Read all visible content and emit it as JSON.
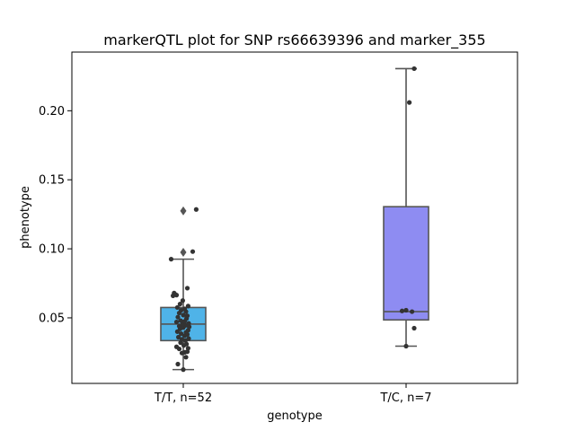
{
  "chart_data": {
    "type": "box",
    "title": "markerQTL plot for SNP rs66639396 and marker_355",
    "xlabel": "genotype",
    "ylabel": "phenotype",
    "ylim": [
      0.0025,
      0.2425
    ],
    "yticks": [
      0.05,
      0.1,
      0.15,
      0.2
    ],
    "ytick_labels": [
      "0.05",
      "0.10",
      "0.15",
      "0.20"
    ],
    "categories": [
      "T/T, n=52",
      "T/C, n=7"
    ],
    "grid": false,
    "legend": "none",
    "colors": {
      "TT": "#4FB3E8",
      "TC": "#8E8CF2",
      "edge": "#555555",
      "points": "#333333"
    },
    "boxes": [
      {
        "category": "T/T, n=52",
        "q1": 0.0335,
        "median": 0.0455,
        "q3": 0.0575,
        "whisker_low": 0.0125,
        "whisker_high": 0.0925,
        "outliers": [
          0.0975,
          0.1275
        ]
      },
      {
        "category": "T/C, n=7",
        "q1": 0.0485,
        "median": 0.0545,
        "q3": 0.1305,
        "whisker_low": 0.0295,
        "whisker_high": 0.2305,
        "outliers": []
      }
    ],
    "points": [
      [
        {
          "x": 0.0,
          "y": 0.0125
        },
        {
          "x": -0.2,
          "y": 0.0165
        },
        {
          "x": 0.1,
          "y": 0.0215
        },
        {
          "x": -0.05,
          "y": 0.0245
        },
        {
          "x": 0.05,
          "y": 0.025
        },
        {
          "x": 0.15,
          "y": 0.0255
        },
        {
          "x": -0.15,
          "y": 0.0275
        },
        {
          "x": 0.18,
          "y": 0.028
        },
        {
          "x": -0.25,
          "y": 0.029
        },
        {
          "x": 0.02,
          "y": 0.03
        },
        {
          "x": 0.12,
          "y": 0.031
        },
        {
          "x": -0.1,
          "y": 0.032
        },
        {
          "x": 0.08,
          "y": 0.0335
        },
        {
          "x": -0.05,
          "y": 0.0345
        },
        {
          "x": 0.2,
          "y": 0.035
        },
        {
          "x": -0.18,
          "y": 0.036
        },
        {
          "x": 0.05,
          "y": 0.037
        },
        {
          "x": 0.15,
          "y": 0.038
        },
        {
          "x": -0.08,
          "y": 0.0385
        },
        {
          "x": 0.1,
          "y": 0.0395
        },
        {
          "x": -0.22,
          "y": 0.04
        },
        {
          "x": 0.18,
          "y": 0.041
        },
        {
          "x": -0.12,
          "y": 0.042
        },
        {
          "x": 0.0,
          "y": 0.043
        },
        {
          "x": 0.22,
          "y": 0.0435
        },
        {
          "x": -0.15,
          "y": 0.044
        },
        {
          "x": 0.08,
          "y": 0.0445
        },
        {
          "x": -0.02,
          "y": 0.0455
        },
        {
          "x": 0.2,
          "y": 0.046
        },
        {
          "x": -0.25,
          "y": 0.047
        },
        {
          "x": 0.05,
          "y": 0.0475
        },
        {
          "x": -0.1,
          "y": 0.048
        },
        {
          "x": 0.12,
          "y": 0.0495
        },
        {
          "x": -0.2,
          "y": 0.0505
        },
        {
          "x": 0.15,
          "y": 0.0515
        },
        {
          "x": 0.0,
          "y": 0.052
        },
        {
          "x": -0.15,
          "y": 0.0535
        },
        {
          "x": 0.1,
          "y": 0.0545
        },
        {
          "x": -0.08,
          "y": 0.0555
        },
        {
          "x": 0.05,
          "y": 0.0565
        },
        {
          "x": -0.22,
          "y": 0.0575
        },
        {
          "x": 0.18,
          "y": 0.0585
        },
        {
          "x": -0.12,
          "y": 0.06
        },
        {
          "x": -0.02,
          "y": 0.0625
        },
        {
          "x": -0.38,
          "y": 0.066
        },
        {
          "x": -0.25,
          "y": 0.0665
        },
        {
          "x": -0.3,
          "y": 0.067
        },
        {
          "x": -0.34,
          "y": 0.068
        },
        {
          "x": 0.15,
          "y": 0.0715
        },
        {
          "x": -0.45,
          "y": 0.0925
        },
        {
          "x": 0.35,
          "y": 0.098
        },
        {
          "x": 0.48,
          "y": 0.1285
        }
      ],
      [
        {
          "x": 0.0,
          "y": 0.0295
        },
        {
          "x": 0.3,
          "y": 0.0425
        },
        {
          "x": 0.22,
          "y": 0.0545
        },
        {
          "x": -0.15,
          "y": 0.055
        },
        {
          "x": 0.0,
          "y": 0.0555
        },
        {
          "x": 0.12,
          "y": 0.206
        },
        {
          "x": 0.3,
          "y": 0.2305
        }
      ]
    ]
  }
}
